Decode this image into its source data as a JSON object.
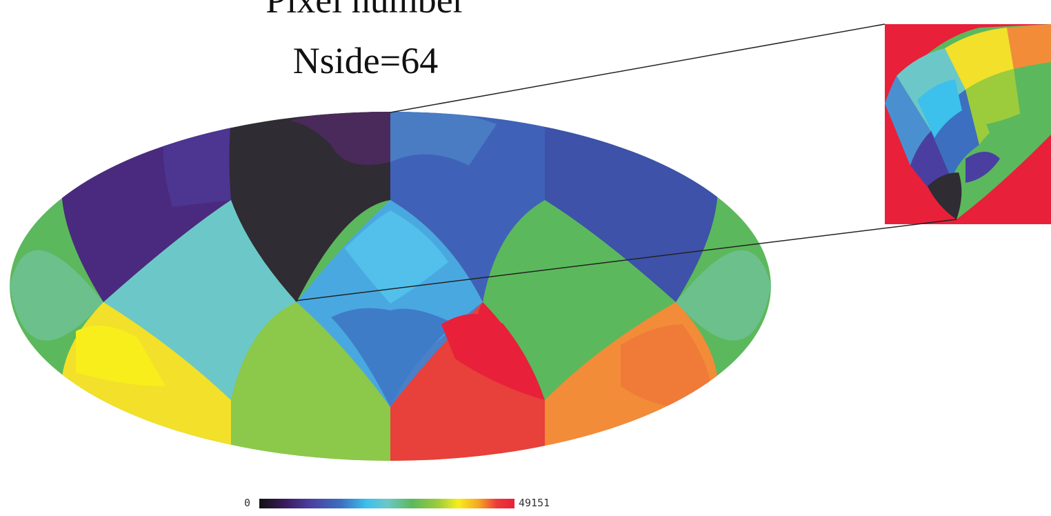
{
  "title": {
    "line1": "Pixel number",
    "line2": "Nside=64"
  },
  "colorbar": {
    "min_label": "0",
    "max_label": "49151",
    "gradient": [
      "#111111",
      "#3a1a5e",
      "#4a3fa0",
      "#3c6fc0",
      "#3cc0ec",
      "#6cc8c8",
      "#5cb85c",
      "#9ccc3c",
      "#f7ee1c",
      "#f5a623",
      "#ec3a3a",
      "#e8203a"
    ]
  },
  "colors": {
    "inset_background": "#e8203a",
    "callout_line": "#222222"
  }
}
